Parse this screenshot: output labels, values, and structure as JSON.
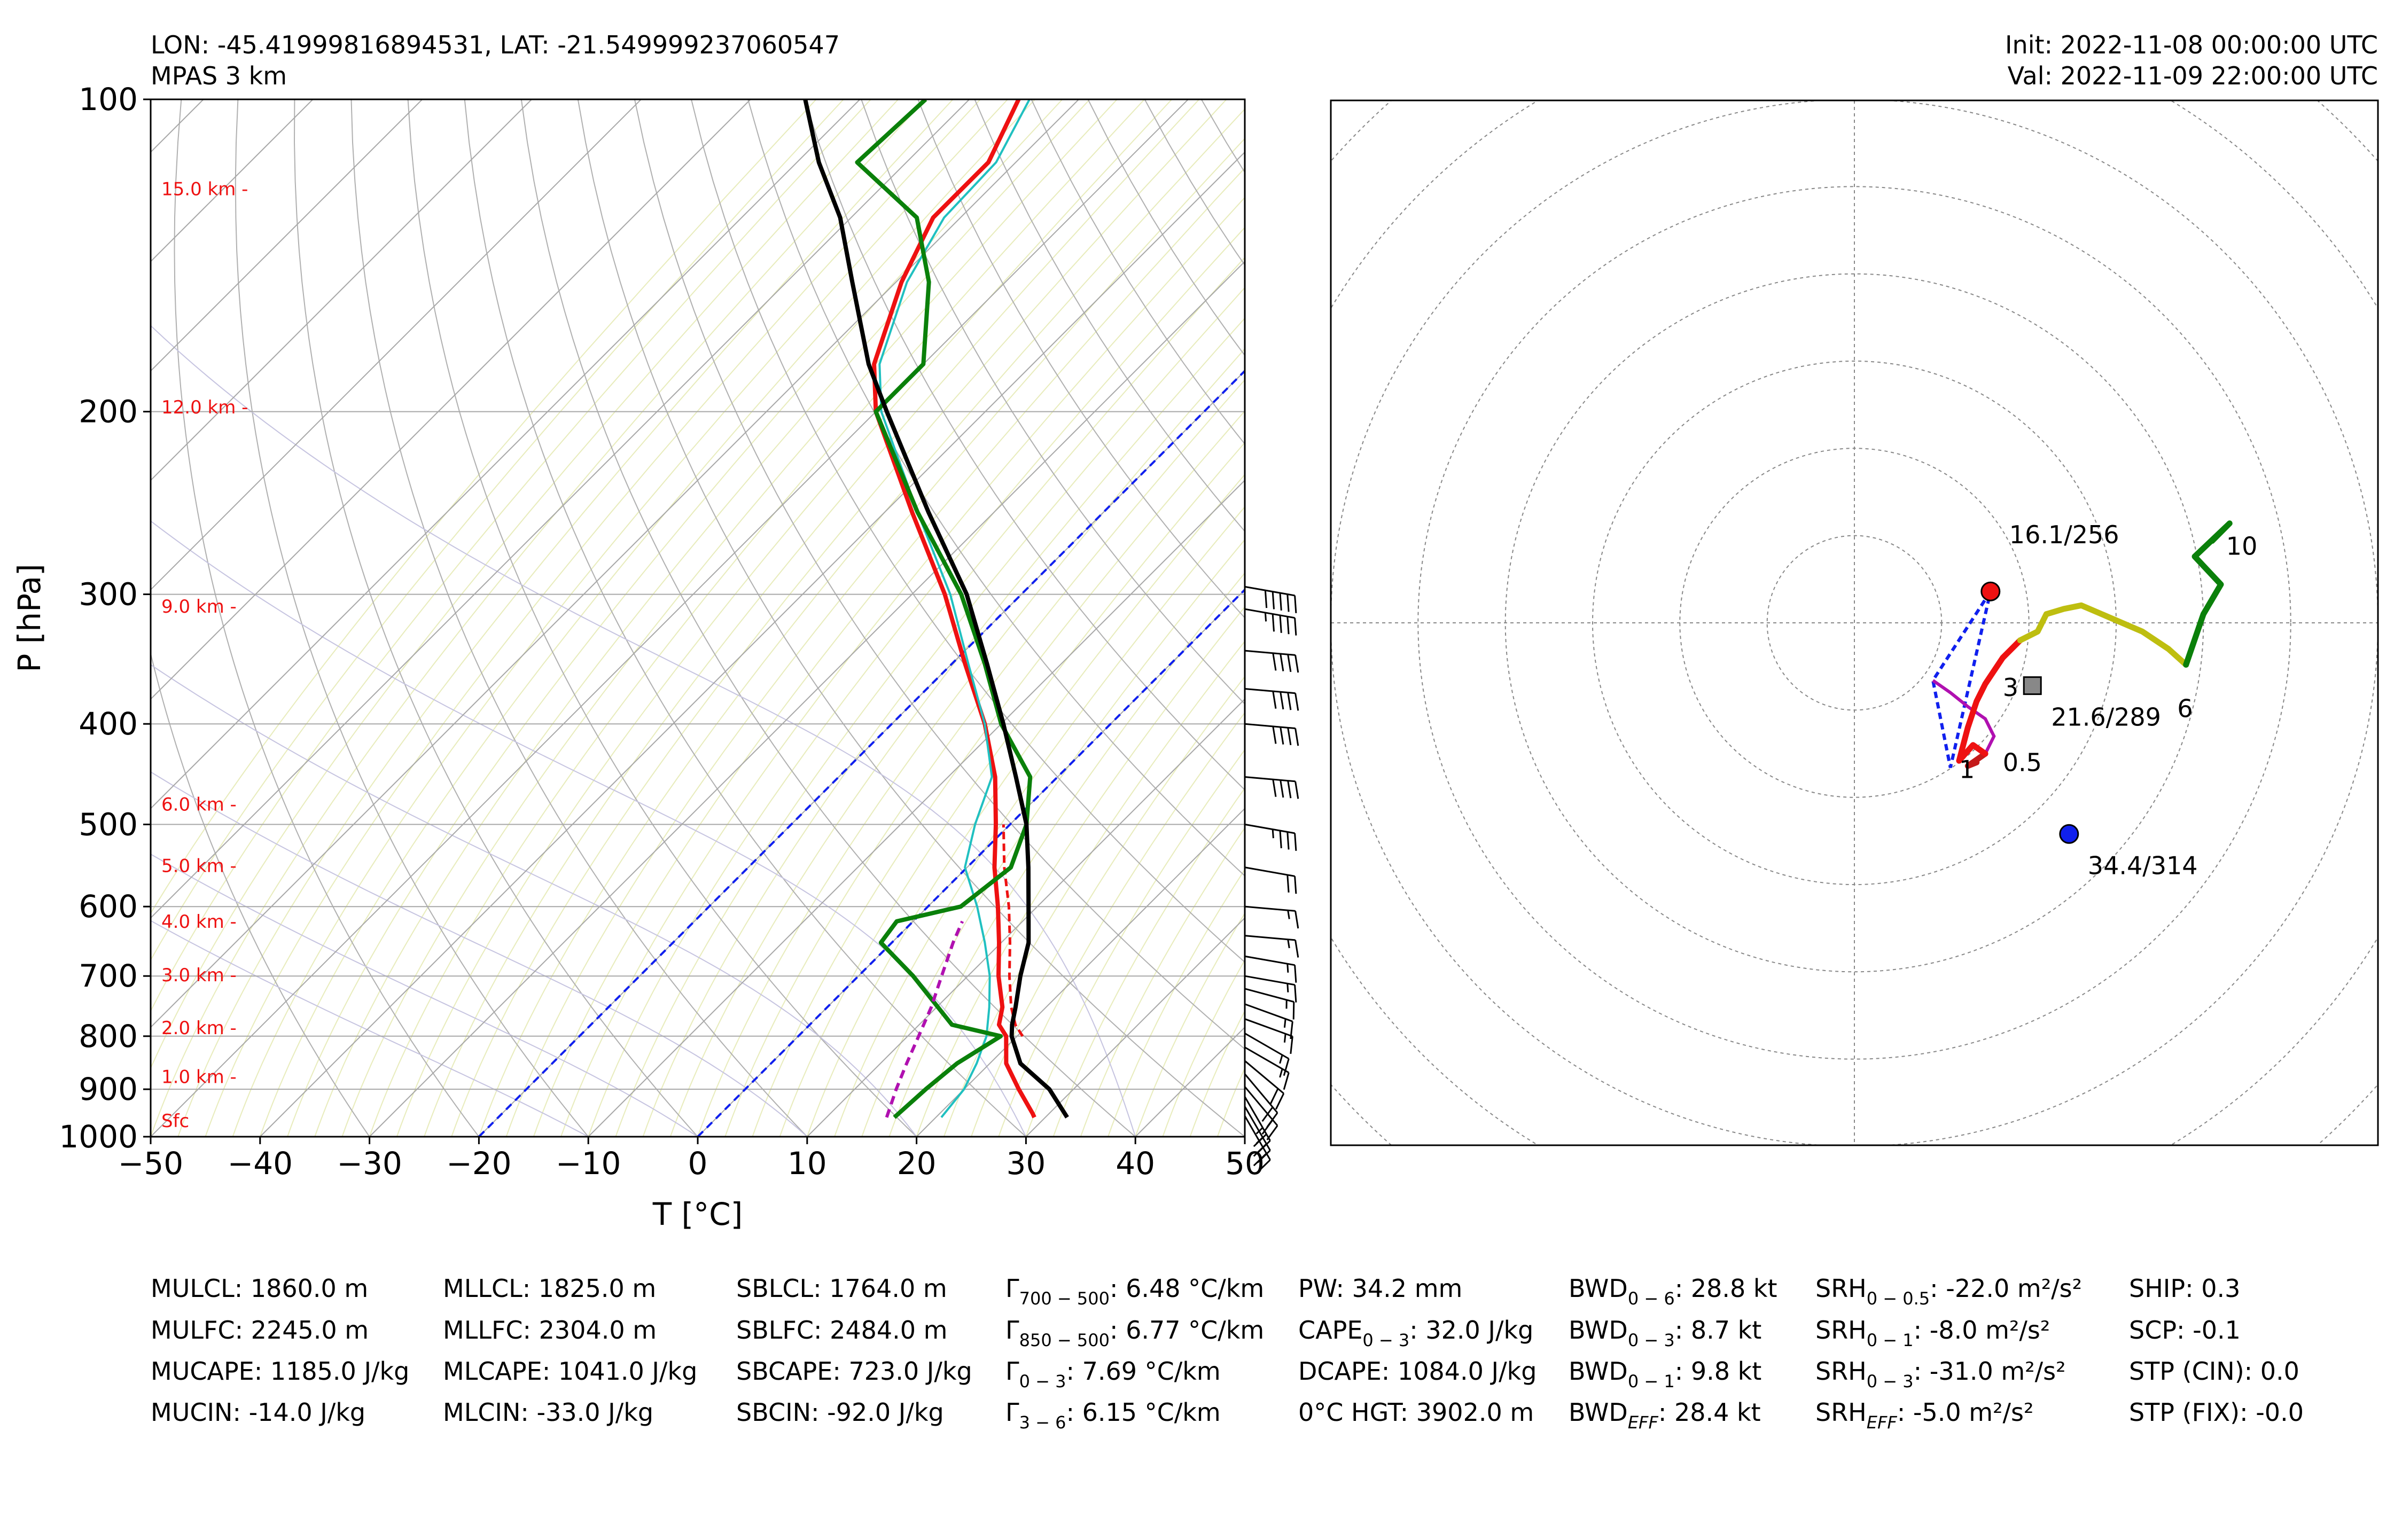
{
  "header": {
    "location": "LON: -45.41999816894531, LAT: -21.549999237060547",
    "model": "MPAS 3 km",
    "init": "Init: 2022-11-08 00:00:00 UTC",
    "valid": "Val: 2022-11-09 22:00:00 UTC"
  },
  "chart_data": [
    {
      "type": "skew-t",
      "xlabel": "T [°C]",
      "ylabel": "P [hPa]",
      "xlim": [
        -50,
        50
      ],
      "ylim": [
        1000,
        100
      ],
      "xticks": [
        -50,
        -40,
        -30,
        -20,
        -10,
        0,
        10,
        20,
        30,
        40,
        50
      ],
      "xtick_labels": [
        "−50",
        "−40",
        "−30",
        "−20",
        "−10",
        "0",
        "10",
        "20",
        "30",
        "40",
        "50"
      ],
      "yticks": [
        100,
        200,
        300,
        400,
        500,
        600,
        700,
        800,
        900,
        1000
      ],
      "height_labels": [
        {
          "p": 965,
          "label": "Sfc"
        },
        {
          "p": 875,
          "label": "1.0 km -"
        },
        {
          "p": 785,
          "label": "2.0 km -"
        },
        {
          "p": 698,
          "label": "3.0 km -"
        },
        {
          "p": 620,
          "label": "4.0 km -"
        },
        {
          "p": 548,
          "label": "5.0 km -"
        },
        {
          "p": 478,
          "label": "6.0 km -"
        },
        {
          "p": 308,
          "label": "9.0 km -"
        },
        {
          "p": 198,
          "label": "12.0 km -"
        },
        {
          "p": 122,
          "label": "15.0 km -"
        }
      ],
      "series": [
        {
          "key": "temperature",
          "color": "#ee1111",
          "width": 4,
          "p": [
            958,
            950,
            900,
            850,
            800,
            780,
            750,
            700,
            650,
            600,
            550,
            500,
            450,
            400,
            350,
            300,
            250,
            200,
            180,
            150,
            130,
            115,
            100
          ],
          "t": [
            29.0,
            28.5,
            25.0,
            21.5,
            19.0,
            17.3,
            16.0,
            12.8,
            9.8,
            6.4,
            2.5,
            -1.3,
            -5.7,
            -11.5,
            -18.8,
            -27.0,
            -37.5,
            -50.0,
            -54.5,
            -59.5,
            -62.5,
            -62.5,
            -65.5
          ]
        },
        {
          "key": "virtual-temperature",
          "color": "#ee1111",
          "width": 2.5,
          "dash": "14,8",
          "p": [
            800,
            780,
            750,
            700,
            650,
            600,
            550,
            500
          ],
          "t": [
            20.5,
            18.8,
            16.8,
            13.8,
            10.8,
            7.4,
            3.4,
            -0.6
          ]
        },
        {
          "key": "wet-bulb",
          "color": "#20c0c0",
          "width": 2,
          "p": [
            958,
            900,
            850,
            800,
            750,
            700,
            650,
            600,
            550,
            500,
            450,
            400,
            350,
            300,
            250,
            200,
            180,
            150,
            130,
            115,
            100
          ],
          "t": [
            20.5,
            20.0,
            18.8,
            17.2,
            14.8,
            12.0,
            8.5,
            4.5,
            -0.2,
            -3.2,
            -6.0,
            -11.5,
            -18.5,
            -26.5,
            -37.0,
            -49.5,
            -54.0,
            -59.0,
            -61.5,
            -61.8,
            -64.5
          ]
        },
        {
          "key": "dewpoint",
          "color": "#0a800a",
          "width": 4,
          "p": [
            958,
            900,
            850,
            800,
            780,
            700,
            650,
            620,
            600,
            550,
            500,
            450,
            400,
            350,
            300,
            250,
            200,
            180,
            150,
            130,
            115,
            100
          ],
          "t": [
            16.2,
            16.5,
            17.0,
            18.5,
            13.0,
            5.0,
            -1.0,
            -1.5,
            3.0,
            4.0,
            1.5,
            -2.5,
            -10.0,
            -17.0,
            -25.5,
            -37.0,
            -50.0,
            -50.0,
            -57.0,
            -64.0,
            -74.5,
            -74.0
          ]
        },
        {
          "key": "surface-parcel",
          "color": "#000000",
          "width": 4,
          "p": [
            958,
            900,
            850,
            800,
            780,
            750,
            700,
            650,
            600,
            550,
            500,
            450,
            400,
            350,
            300,
            250,
            200,
            180,
            150,
            130,
            115,
            100
          ],
          "t": [
            32.0,
            27.8,
            22.8,
            19.5,
            18.5,
            17.2,
            14.8,
            12.5,
            9.2,
            5.6,
            1.5,
            -3.8,
            -9.8,
            -16.8,
            -25.0,
            -36.0,
            -49.0,
            -55.0,
            -64.0,
            -71.0,
            -78.0,
            -85.0
          ]
        },
        {
          "key": "downdraft-profile",
          "color": "#b010b0",
          "width": 3,
          "dash": "16,10",
          "p": [
            958,
            900,
            850,
            800,
            750,
            700,
            650,
            620
          ],
          "t": [
            15.5,
            13.8,
            12.4,
            11.0,
            9.5,
            7.6,
            5.6,
            4.5
          ]
        }
      ],
      "reference_lines": [
        {
          "key": "hgz-low-isotherm",
          "color": "#1020ee",
          "dash": "14,10",
          "surface_t": -20.0
        },
        {
          "key": "hgz-high-isotherm",
          "color": "#1020ee",
          "dash": "14,10",
          "surface_t": 0.0
        }
      ],
      "wind_barbs": [
        {
          "p": 955,
          "dir": 330,
          "spd": 20
        },
        {
          "p": 935,
          "dir": 330,
          "spd": 25
        },
        {
          "p": 915,
          "dir": 330,
          "spd": 25
        },
        {
          "p": 895,
          "dir": 320,
          "spd": 20
        },
        {
          "p": 870,
          "dir": 320,
          "spd": 20
        },
        {
          "p": 845,
          "dir": 310,
          "spd": 20
        },
        {
          "p": 820,
          "dir": 300,
          "spd": 15
        },
        {
          "p": 795,
          "dir": 300,
          "spd": 15
        },
        {
          "p": 770,
          "dir": 290,
          "spd": 15
        },
        {
          "p": 745,
          "dir": 290,
          "spd": 15
        },
        {
          "p": 720,
          "dir": 285,
          "spd": 15
        },
        {
          "p": 700,
          "dir": 280,
          "spd": 15
        },
        {
          "p": 670,
          "dir": 280,
          "spd": 15
        },
        {
          "p": 640,
          "dir": 275,
          "spd": 15
        },
        {
          "p": 600,
          "dir": 275,
          "spd": 15
        },
        {
          "p": 550,
          "dir": 280,
          "spd": 20
        },
        {
          "p": 500,
          "dir": 280,
          "spd": 35
        },
        {
          "p": 450,
          "dir": 275,
          "spd": 40
        },
        {
          "p": 400,
          "dir": 275,
          "spd": 40
        },
        {
          "p": 370,
          "dir": 275,
          "spd": 40
        },
        {
          "p": 340,
          "dir": 275,
          "spd": 40
        },
        {
          "p": 310,
          "dir": 280,
          "spd": 45
        },
        {
          "p": 295,
          "dir": 280,
          "spd": 50
        }
      ]
    },
    {
      "type": "hodograph",
      "xlim": [
        -30,
        30
      ],
      "ylim": [
        -30,
        30
      ],
      "rings": [
        5,
        10,
        15,
        20,
        25,
        30,
        35,
        40
      ],
      "grid": true,
      "segments": [
        {
          "key": "0-0.5km",
          "color": "#c41a1a",
          "u": [
            7,
            6.5,
            7.5
          ],
          "v": [
            -8,
            -8.2,
            -7.5
          ]
        },
        {
          "key": "0.5-1km",
          "color": "#ee1111",
          "u": [
            7.5,
            6.8,
            6.0
          ],
          "v": [
            -7.5,
            -7.0,
            -7.9
          ]
        },
        {
          "key": "1-3km",
          "color": "#ee1111",
          "u": [
            6.0,
            6.5,
            7.0,
            7.5,
            8.5,
            9.5
          ],
          "v": [
            -7.9,
            -6.0,
            -4.5,
            -3.5,
            -2.0,
            -1.0
          ]
        },
        {
          "key": "3-6km",
          "color": "#bebe10",
          "u": [
            9.5,
            10.5,
            11.0,
            12.0,
            13.0,
            16.5,
            18.0,
            19.0
          ],
          "v": [
            -1.0,
            -0.5,
            0.5,
            0.8,
            1.0,
            -0.5,
            -1.5,
            -2.4
          ]
        },
        {
          "key": "6-10km",
          "color": "#0a800a",
          "u": [
            19.0,
            20.0,
            21.0,
            19.5,
            21.5,
            20.5
          ],
          "v": [
            -2.4,
            0.5,
            2.2,
            3.8,
            5.7,
            4.7
          ]
        }
      ],
      "lines": [
        {
          "key": "bunkers-shear-line",
          "color": "#1020ee",
          "dash": "12,8",
          "u": [
            7.8,
            4.5,
            5.5,
            7.8
          ],
          "v": [
            1.8,
            -3.3,
            -8.3,
            1.8
          ]
        },
        {
          "key": "downdraft-hodo-path",
          "color": "#b010b0",
          "u": [
            4.5,
            5.5,
            6.5,
            7.5,
            8.0,
            7.5
          ],
          "v": [
            -3.3,
            -4.0,
            -4.8,
            -5.5,
            -6.5,
            -7.5
          ]
        }
      ],
      "markers": [
        {
          "key": "bunkers-left",
          "color": "#ee1111",
          "u": 7.8,
          "v": 1.8,
          "label": "16.1/256"
        },
        {
          "key": "bunkers-right",
          "color": "#1020ee",
          "u": 12.3,
          "v": -12.1,
          "label": "34.4/314"
        },
        {
          "key": "mean-wind",
          "color": "#888888",
          "u": 10.2,
          "v": -3.6,
          "label": "21.6/289"
        }
      ],
      "height_marks": [
        {
          "u": 6.0,
          "v": -8.9,
          "label": "1"
        },
        {
          "u": 8.5,
          "v": -8.5,
          "label": "0.5"
        },
        {
          "u": 8.5,
          "v": -4.2,
          "label": "3"
        },
        {
          "u": 18.5,
          "v": -5.4,
          "label": "6"
        },
        {
          "u": 21.3,
          "v": 3.9,
          "label": "10"
        }
      ]
    }
  ],
  "indices": [
    [
      "MULCL: 1860.0 m",
      "MULFC: 2245.0 m",
      "MUCAPE: 1185.0 J/kg",
      "MUCIN: -14.0 J/kg"
    ],
    [
      "MLLCL: 1825.0 m",
      "MLLFC: 2304.0 m",
      "MLCAPE: 1041.0 J/kg",
      "MLCIN: -33.0 J/kg"
    ],
    [
      "SBLCL: 1764.0 m",
      "SBLFC: 2484.0 m",
      "SBCAPE: 723.0 J/kg",
      "SBCIN: -92.0 J/kg"
    ],
    [
      {
        "sym": "Γ",
        "sub": "700 − 500",
        "text": ": 6.48 °C/km"
      },
      {
        "sym": "Γ",
        "sub": "850 − 500",
        "text": ": 6.77 °C/km"
      },
      {
        "sym": "Γ",
        "sub": "0 − 3",
        "text": ": 7.69 °C/km"
      },
      {
        "sym": "Γ",
        "sub": "3 − 6",
        "text": ": 6.15 °C/km"
      }
    ],
    [
      "PW: 34.2 mm",
      {
        "sym": "CAPE",
        "sub": "0 − 3",
        "text": ": 32.0 J/kg"
      },
      "DCAPE: 1084.0 J/kg",
      "0°C HGT: 3902.0 m"
    ],
    [
      {
        "sym": "BWD",
        "sub": "0 − 6",
        "text": ": 28.8 kt"
      },
      {
        "sym": "BWD",
        "sub": "0 − 3",
        "text": ": 8.7 kt"
      },
      {
        "sym": "BWD",
        "sub": "0 − 1",
        "text": ": 9.8 kt"
      },
      {
        "sym": "BWD",
        "sub": "EFF",
        "italic": true,
        "text": ": 28.4 kt"
      }
    ],
    [
      {
        "sym": "SRH",
        "sub": "0 − 0.5",
        "text": ": -22.0 m²/s²"
      },
      {
        "sym": "SRH",
        "sub": "0 − 1",
        "text": ": -8.0 m²/s²"
      },
      {
        "sym": "SRH",
        "sub": "0 − 3",
        "text": ": -31.0 m²/s²"
      },
      {
        "sym": "SRH",
        "sub": "EFF",
        "italic": true,
        "text": ": -5.0 m²/s²"
      }
    ],
    [
      "SHIP: 0.3",
      "SCP: -0.1",
      "STP (CIN): 0.0",
      "STP (FIX): -0.0"
    ]
  ]
}
